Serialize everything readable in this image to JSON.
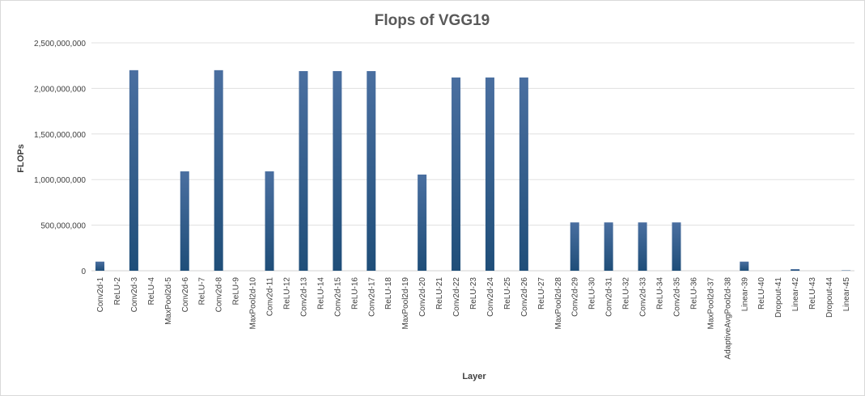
{
  "chart_data": {
    "type": "bar",
    "title": "Flops of VGG19",
    "xlabel": "Layer",
    "ylabel": "FLOPs",
    "ylim": [
      0,
      2500000000
    ],
    "yticks": [
      0,
      500000000,
      1000000000,
      1500000000,
      2000000000,
      2500000000
    ],
    "ytick_labels": [
      "0",
      "500,000,000",
      "1,000,000,000",
      "1,500,000,000",
      "2,000,000,000",
      "2,500,000,000"
    ],
    "grid": true,
    "legend": "none",
    "colors": {
      "bar_top": "#4a6fa0",
      "bar_bottom": "#1f4e79"
    },
    "categories": [
      "Conv2d-1",
      "ReLU-2",
      "Conv2d-3",
      "ReLU-4",
      "MaxPool2d-5",
      "Conv2d-6",
      "ReLU-7",
      "Conv2d-8",
      "ReLU-9",
      "MaxPool2d-10",
      "Conv2d-11",
      "ReLU-12",
      "Conv2d-13",
      "ReLU-14",
      "Conv2d-15",
      "ReLU-16",
      "Conv2d-17",
      "ReLU-18",
      "MaxPool2d-19",
      "Conv2d-20",
      "ReLU-21",
      "Conv2d-22",
      "ReLU-23",
      "Conv2d-24",
      "ReLU-25",
      "Conv2d-26",
      "ReLU-27",
      "MaxPool2d-28",
      "Conv2d-29",
      "ReLU-30",
      "Conv2d-31",
      "ReLU-32",
      "Conv2d-33",
      "ReLU-34",
      "Conv2d-35",
      "ReLU-36",
      "MaxPool2d-37",
      "AdaptiveAvgPool2d-38",
      "Linear-39",
      "ReLU-40",
      "Dropout-41",
      "Linear-42",
      "ReLU-43",
      "Dropout-44",
      "Linear-45"
    ],
    "values": [
      100000000,
      0,
      2200000000,
      0,
      0,
      1090000000,
      0,
      2200000000,
      0,
      0,
      1090000000,
      0,
      2190000000,
      0,
      2190000000,
      0,
      2190000000,
      0,
      0,
      1055000000,
      0,
      2120000000,
      0,
      2120000000,
      0,
      2120000000,
      0,
      0,
      530000000,
      0,
      530000000,
      0,
      530000000,
      0,
      530000000,
      0,
      0,
      0,
      100000000,
      0,
      0,
      17000000,
      0,
      0,
      4000000
    ]
  }
}
